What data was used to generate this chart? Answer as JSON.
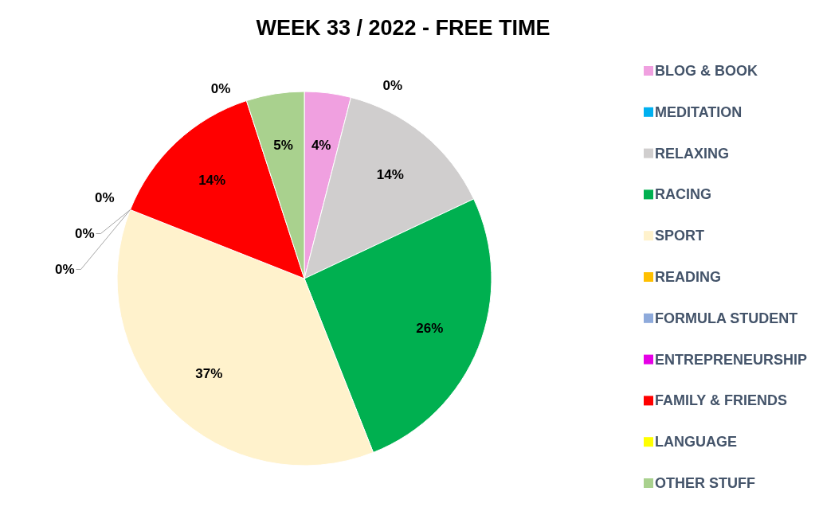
{
  "chart_data": {
    "type": "pie",
    "title": "WEEK 33 / 2022 - FREE TIME",
    "categories": [
      "BLOG & BOOK",
      "MEDITATION",
      "RELAXING",
      "RACING",
      "SPORT",
      "READING",
      "FORMULA STUDENT",
      "ENTREPRENEURSHIP",
      "FAMILY & FRIENDS",
      "LANGUAGE",
      "OTHER STUFF"
    ],
    "values": [
      4,
      0,
      14,
      26,
      37,
      0,
      0,
      0,
      14,
      0,
      5
    ],
    "colors": [
      "#f0a0e0",
      "#00b0f0",
      "#d0cece",
      "#00b050",
      "#fff2cc",
      "#ffc000",
      "#8eaadb",
      "#e600e6",
      "#ff0000",
      "#ffff00",
      "#a9d18e"
    ],
    "value_labels": [
      "4%",
      "0%",
      "14%",
      "26%",
      "37%",
      "0%",
      "0%",
      "0%",
      "14%",
      "0%",
      "5%"
    ],
    "legend": "right"
  }
}
